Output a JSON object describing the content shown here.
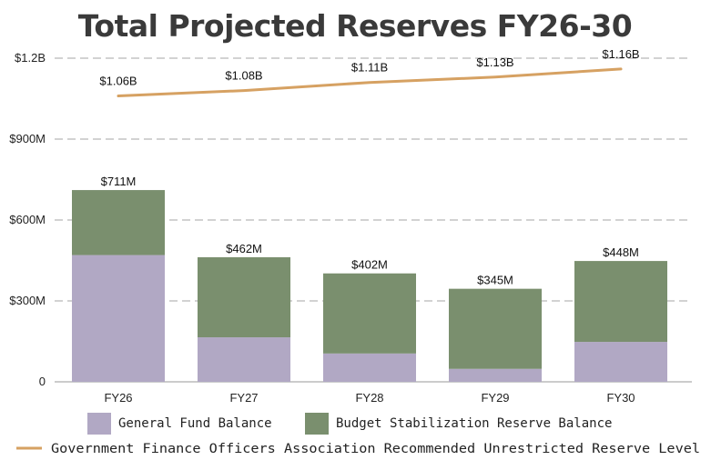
{
  "chart_data": {
    "type": "bar",
    "title": "Total Projected Reserves FY26-30",
    "categories": [
      "FY26",
      "FY27",
      "FY28",
      "FY29",
      "FY30"
    ],
    "units": "millions of dollars",
    "series": [
      {
        "name": "General Fund Balance",
        "kind": "stacked-bar",
        "color": "#b1a8c4",
        "values": [
          470,
          165,
          105,
          48,
          148
        ]
      },
      {
        "name": "Budget Stabilization Reserve Balance",
        "kind": "stacked-bar",
        "color": "#7a8f6e",
        "values": [
          241,
          297,
          297,
          297,
          300
        ]
      },
      {
        "name": "Government Finance Officers Association Recommended Unrestricted Reserve Level",
        "kind": "line",
        "color": "#d6a162",
        "values": [
          1060,
          1080,
          1110,
          1130,
          1160
        ]
      }
    ],
    "bar_total_labels": [
      "$711M",
      "$462M",
      "$402M",
      "$345M",
      "$448M"
    ],
    "line_labels": [
      "$1.06B",
      "$1.08B",
      "$1.11B",
      "$1.13B",
      "$1.16B"
    ],
    "y_ticks": [
      0,
      300,
      600,
      900,
      1200
    ],
    "y_tick_labels": [
      "0",
      "$300M",
      "$600M",
      "$900M",
      "$1.2B"
    ],
    "ylim": [
      0,
      1200
    ],
    "grid": true,
    "legend_placement": "bottom"
  }
}
